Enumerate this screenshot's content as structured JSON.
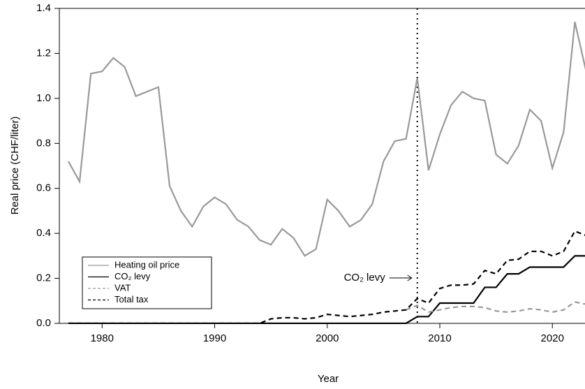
{
  "chart_data": {
    "type": "line",
    "x_label": "Year",
    "y_label": "Real price (CHF/liter)",
    "x": [
      1977,
      1978,
      1979,
      1980,
      1981,
      1982,
      1983,
      1984,
      1985,
      1986,
      1987,
      1988,
      1989,
      1990,
      1991,
      1992,
      1993,
      1994,
      1995,
      1996,
      1997,
      1998,
      1999,
      2000,
      2001,
      2002,
      2003,
      2004,
      2005,
      2006,
      2007,
      2008,
      2009,
      2010,
      2011,
      2012,
      2013,
      2014,
      2015,
      2016,
      2017,
      2018,
      2019,
      2020,
      2021,
      2022,
      2023
    ],
    "series": [
      {
        "name": "Heating oil price",
        "color": "#999999",
        "dashed": false,
        "values": [
          0.72,
          0.63,
          1.11,
          1.12,
          1.18,
          1.14,
          1.01,
          1.03,
          1.05,
          0.61,
          0.5,
          0.43,
          0.52,
          0.56,
          0.53,
          0.46,
          0.43,
          0.37,
          0.35,
          0.42,
          0.38,
          0.3,
          0.33,
          0.55,
          0.5,
          0.43,
          0.46,
          0.53,
          0.72,
          0.81,
          0.82,
          1.09,
          0.68,
          0.84,
          0.97,
          1.03,
          1.0,
          0.99,
          0.75,
          0.71,
          0.79,
          0.95,
          0.9,
          0.69,
          0.85,
          1.34,
          1.12
        ]
      },
      {
        "name": "CO₂ levy",
        "color": "#000000",
        "dashed": false,
        "values": [
          0,
          0,
          0,
          0,
          0,
          0,
          0,
          0,
          0,
          0,
          0,
          0,
          0,
          0,
          0,
          0,
          0,
          0,
          0,
          0,
          0,
          0,
          0,
          0,
          0,
          0,
          0,
          0,
          0,
          0,
          0,
          0.03,
          0.03,
          0.09,
          0.09,
          0.09,
          0.09,
          0.16,
          0.16,
          0.22,
          0.22,
          0.25,
          0.25,
          0.25,
          0.25,
          0.3,
          0.3
        ]
      },
      {
        "name": "VAT",
        "color": "#999999",
        "dashed": true,
        "values": [
          null,
          null,
          null,
          null,
          null,
          null,
          null,
          null,
          null,
          null,
          null,
          null,
          null,
          null,
          null,
          null,
          null,
          null,
          null,
          null,
          null,
          null,
          null,
          null,
          null,
          null,
          null,
          null,
          null,
          null,
          0.06,
          0.08,
          0.05,
          0.06,
          0.07,
          0.075,
          0.075,
          0.07,
          0.055,
          0.05,
          0.055,
          0.065,
          0.06,
          0.05,
          0.06,
          0.095,
          0.085
        ]
      },
      {
        "name": "Total tax",
        "color": "#000000",
        "dashed": true,
        "values": [
          0,
          0,
          0,
          0,
          0,
          0,
          0,
          0,
          0,
          0,
          0,
          0,
          0,
          0,
          0,
          0,
          0,
          0,
          0.02,
          0.025,
          0.025,
          0.02,
          0.025,
          0.04,
          0.035,
          0.03,
          0.035,
          0.04,
          0.05,
          0.055,
          0.06,
          0.11,
          0.09,
          0.155,
          0.17,
          0.17,
          0.175,
          0.235,
          0.22,
          0.28,
          0.285,
          0.32,
          0.32,
          0.3,
          0.32,
          0.41,
          0.39
        ]
      }
    ],
    "xlim": [
      1976.2,
      2022.9
    ],
    "ylim": [
      0,
      1.4
    ],
    "xticks": [
      1980,
      1990,
      2000,
      2010,
      2020
    ],
    "yticks": [
      {
        "value": 0,
        "label": "0.0"
      },
      {
        "value": 0.2,
        "label": "0.2"
      },
      {
        "value": 0.4,
        "label": "0.4"
      },
      {
        "value": 0.6,
        "label": "0.6"
      },
      {
        "value": 0.8,
        "label": "0.8"
      },
      {
        "value": 1.0,
        "label": "1.0"
      },
      {
        "value": 1.2,
        "label": "1.2"
      },
      {
        "value": 1.4,
        "label": "1.4"
      }
    ],
    "vline": {
      "x": 2008,
      "label": "CO₂ levy"
    },
    "legend": "bottom-left"
  }
}
